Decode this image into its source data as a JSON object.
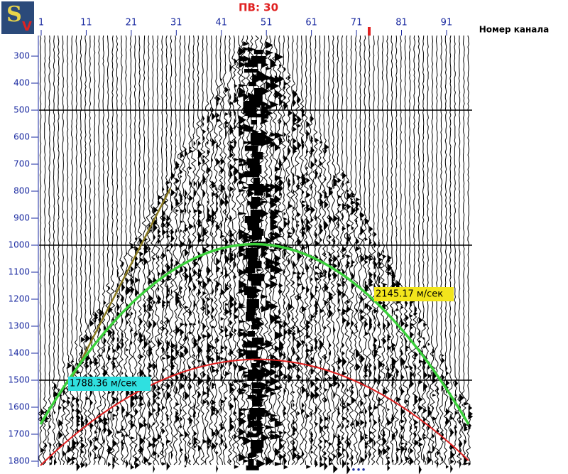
{
  "header": {
    "title": "ПВ: 30",
    "logo": {
      "first": "S",
      "second": "V"
    }
  },
  "x_axis": {
    "label": "Номер канала",
    "ticks": [
      1,
      11,
      21,
      31,
      41,
      51,
      61,
      71,
      81,
      91
    ]
  },
  "y_axis": {
    "ticks": [
      300,
      400,
      500,
      600,
      700,
      800,
      900,
      1000,
      1100,
      1200,
      1300,
      1400,
      1500,
      1600,
      1700,
      1800
    ]
  },
  "annotations": [
    "2145.17 м/сек",
    "1788.36 м/сек"
  ]
}
